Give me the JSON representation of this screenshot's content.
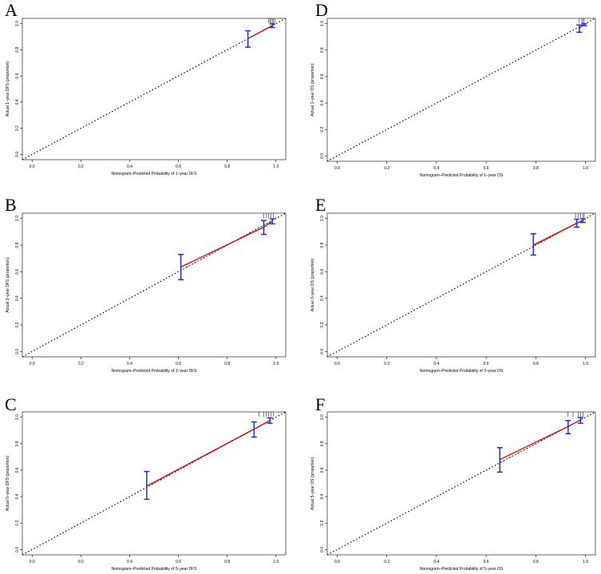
{
  "chart_data": [
    {
      "type": "line",
      "panel": "A",
      "xlabel": "Nomogram–Predicted Probability of 1–year DFS",
      "ylabel": "Actual 1–year DFS (proportion)",
      "xlim": [
        0,
        1
      ],
      "ylim": [
        0,
        1
      ],
      "x_ticks": [
        "0.0",
        "0.2",
        "0.4",
        "0.6",
        "0.8",
        "1.0"
      ],
      "y_ticks": [
        "0.0",
        "0.2",
        "0.4",
        "0.6",
        "0.8",
        "1.0"
      ],
      "grid": false,
      "points": [
        {
          "x": 0.885,
          "y": 0.885,
          "lo": 0.82,
          "hi": 0.945
        },
        {
          "x": 0.985,
          "y": 0.985,
          "lo": 0.97,
          "hi": 0.998
        }
      ],
      "rug": [
        0.97,
        0.975,
        0.98,
        0.985,
        0.99,
        0.995
      ],
      "colors": {
        "calibration": "#e00000",
        "error_bars": "#1f2de8"
      }
    },
    {
      "type": "line",
      "panel": "B",
      "xlabel": "Nomogram–Predicted Probability of 3–year DFS",
      "ylabel": "Actual 3–year DFS (proportion)",
      "xlim": [
        0,
        1
      ],
      "ylim": [
        0,
        1
      ],
      "x_ticks": [
        "0.0",
        "0.2",
        "0.4",
        "0.6",
        "0.8",
        "1.0"
      ],
      "y_ticks": [
        "0.0",
        "0.2",
        "0.4",
        "0.6",
        "0.8",
        "1.0"
      ],
      "grid": false,
      "points": [
        {
          "x": 0.61,
          "y": 0.635,
          "lo": 0.54,
          "hi": 0.73
        },
        {
          "x": 0.95,
          "y": 0.935,
          "lo": 0.88,
          "hi": 0.985
        },
        {
          "x": 0.985,
          "y": 0.98,
          "lo": 0.96,
          "hi": 0.998
        }
      ],
      "rug": [
        0.95,
        0.96,
        0.97,
        0.98,
        0.99
      ],
      "colors": {
        "calibration": "#e00000",
        "error_bars": "#1f2de8"
      }
    },
    {
      "type": "line",
      "panel": "C",
      "xlabel": "Nomogram–Predicted Probability of 5–year DFS",
      "ylabel": "Actual 5–year DFS (proportion)",
      "xlim": [
        0,
        1
      ],
      "ylim": [
        0,
        1
      ],
      "x_ticks": [
        "0.0",
        "0.2",
        "0.4",
        "0.6",
        "0.8",
        "1.0"
      ],
      "y_ticks": [
        "0.0",
        "0.2",
        "0.4",
        "0.6",
        "0.8",
        "1.0"
      ],
      "grid": false,
      "points": [
        {
          "x": 0.47,
          "y": 0.48,
          "lo": 0.38,
          "hi": 0.59
        },
        {
          "x": 0.91,
          "y": 0.91,
          "lo": 0.85,
          "hi": 0.965
        },
        {
          "x": 0.975,
          "y": 0.975,
          "lo": 0.955,
          "hi": 0.995
        }
      ],
      "rug": [
        0.93,
        0.95,
        0.96,
        0.97,
        0.98,
        0.99
      ],
      "colors": {
        "calibration": "#e00000",
        "error_bars": "#1f2de8"
      }
    },
    {
      "type": "line",
      "panel": "D",
      "xlabel": "Nomogram–Predicted Probability of 1–year OS",
      "ylabel": "Actual 1–year OS (proportion)",
      "xlim": [
        0,
        1
      ],
      "ylim": [
        0,
        1
      ],
      "x_ticks": [
        "0.0",
        "0.2",
        "0.4",
        "0.6",
        "0.8",
        "1.0"
      ],
      "y_ticks": [
        "0.0",
        "0.2",
        "0.4",
        "0.6",
        "0.8",
        "1.0"
      ],
      "grid": false,
      "points": [
        {
          "x": 0.975,
          "y": 0.965,
          "lo": 0.935,
          "hi": 0.99
        },
        {
          "x": 0.995,
          "y": 0.995,
          "lo": 0.985,
          "hi": 1.0
        }
      ],
      "rug": [
        0.975,
        0.985,
        0.99,
        0.995
      ],
      "colors": {
        "calibration": "#e00000",
        "error_bars": "#1f2de8"
      }
    },
    {
      "type": "line",
      "panel": "E",
      "xlabel": "Nomogram–Predicted Probability of 3–year OS",
      "ylabel": "Actual 3–year OS (proportion)",
      "xlim": [
        0,
        1
      ],
      "ylim": [
        0,
        1
      ],
      "x_ticks": [
        "0.0",
        "0.2",
        "0.4",
        "0.6",
        "0.8",
        "1.0"
      ],
      "y_ticks": [
        "0.0",
        "0.2",
        "0.4",
        "0.6",
        "0.8",
        "1.0"
      ],
      "grid": false,
      "points": [
        {
          "x": 0.79,
          "y": 0.8,
          "lo": 0.725,
          "hi": 0.885
        },
        {
          "x": 0.965,
          "y": 0.965,
          "lo": 0.935,
          "hi": 0.995
        },
        {
          "x": 0.99,
          "y": 0.985,
          "lo": 0.97,
          "hi": 0.998
        }
      ],
      "rug": [
        0.96,
        0.97,
        0.98,
        0.99,
        0.995
      ],
      "colors": {
        "calibration": "#e00000",
        "error_bars": "#1f2de8"
      }
    },
    {
      "type": "line",
      "panel": "F",
      "xlabel": "Nomogram–Predicted Probability of 5–year OS",
      "ylabel": "Actual 5–year OS (proportion)",
      "xlim": [
        0,
        1
      ],
      "ylim": [
        0,
        1
      ],
      "x_ticks": [
        "0.0",
        "0.2",
        "0.4",
        "0.6",
        "0.8",
        "1.0"
      ],
      "y_ticks": [
        "0.0",
        "0.2",
        "0.4",
        "0.6",
        "0.8",
        "1.0"
      ],
      "grid": false,
      "points": [
        {
          "x": 0.655,
          "y": 0.68,
          "lo": 0.585,
          "hi": 0.77
        },
        {
          "x": 0.93,
          "y": 0.93,
          "lo": 0.875,
          "hi": 0.975
        },
        {
          "x": 0.98,
          "y": 0.98,
          "lo": 0.955,
          "hi": 0.998
        }
      ],
      "rug": [
        0.93,
        0.95,
        0.97,
        0.98,
        0.99
      ],
      "colors": {
        "calibration": "#e00000",
        "error_bars": "#1f2de8"
      }
    }
  ]
}
